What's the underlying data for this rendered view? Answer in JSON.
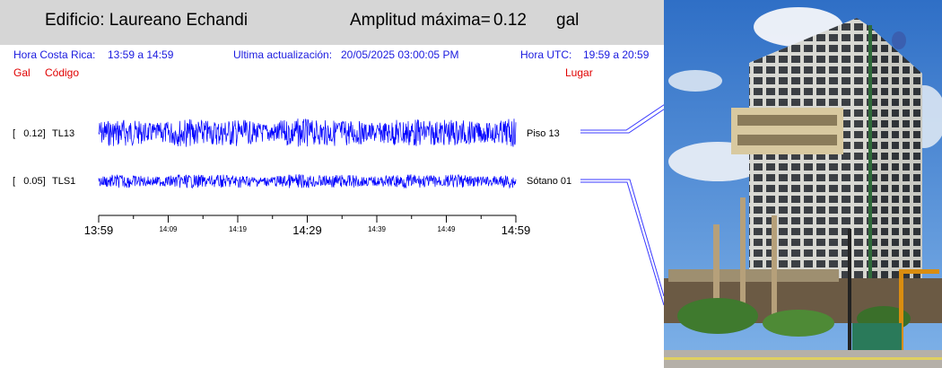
{
  "header": {
    "building_label": "Edificio: Laureano Echandi",
    "amp_label": "Amplitud máxima=",
    "amp_value": "0.12",
    "amp_unit": "gal"
  },
  "info": {
    "local_label": "Hora Costa Rica:",
    "local_range": "13:59 a 14:59",
    "update_label": "Ultima actualización:",
    "update_value": "20/05/2025 03:00:05 PM",
    "utc_label": "Hora UTC:",
    "utc_range": "19:59 a 20:59"
  },
  "columns": {
    "gal": "Gal",
    "code": "Código",
    "place": "Lugar"
  },
  "channels": [
    {
      "amp": "[   0.12]",
      "code": "TL13",
      "place": "Piso 13",
      "color": "#0000ff",
      "amplitude": 0.12
    },
    {
      "amp": "[   0.05]",
      "code": "TLS1",
      "place": "Sótano 01",
      "color": "#0000ff",
      "amplitude": 0.05
    }
  ],
  "axis": {
    "major_labels": [
      "13:59",
      "14:29",
      "14:59"
    ],
    "minor_labels": [
      "14:09",
      "14:19",
      "14:39",
      "14:49"
    ]
  },
  "photo": {
    "sky": "#3f7fd0",
    "building": "#e6e6e0"
  }
}
